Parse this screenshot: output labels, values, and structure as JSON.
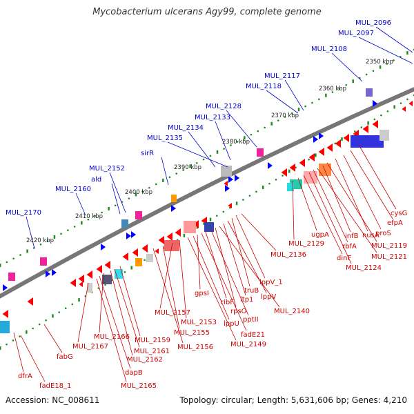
{
  "title": "Mycobacterium ulcerans Agy99, complete genome",
  "footer": {
    "accession": "Accession: NC_008611",
    "summary": "Topology: circular; Length: 5,631,606 bp; Genes: 4,210"
  },
  "colors": {
    "backbone": "#888888",
    "forward_gene": "#0000ff",
    "reverse_gene": "#ff0000",
    "tick": "#228b22",
    "label_forward": "#0000cc",
    "label_reverse": "#cc0000"
  },
  "scale_labels": [
    "2350 kbp",
    "2360 kbp",
    "2370 kbp",
    "2380 kbp",
    "2390 kbp",
    "2400 kbp",
    "2410 kbp",
    "2420 kbp"
  ],
  "forward_genes": [
    "MUL_2096",
    "MUL_2097",
    "MUL_2108",
    "MUL_2117",
    "MUL_2118",
    "MUL_2128",
    "MUL_2133",
    "MUL_2134",
    "MUL_2135",
    "sirR",
    "MUL_2152",
    "ald",
    "MUL_2160",
    "MUL_2170"
  ],
  "reverse_genes": [
    "cysG",
    "efpA",
    "proS",
    "nusA",
    "MUL_2119",
    "infB",
    "MUL_2121",
    "rbfA",
    "MUL_2124",
    "dinF",
    "ugpA",
    "MUL_2129",
    "MUL_2136",
    "lppV_1",
    "truB",
    "lppV",
    "ltp1",
    "MUL_2140",
    "rpsO",
    "pptII",
    "ribF",
    "fadE21",
    "gpsI",
    "lppU",
    "MUL_2149",
    "MUL_2153",
    "MUL_2157",
    "MUL_2155",
    "MUL_2156",
    "MUL_2159",
    "MUL_2161",
    "MUL_2162",
    "MUL_2166",
    "MUL_2167",
    "dapB",
    "MUL_2165",
    "fabG",
    "dfrA",
    "fadE18_1"
  ]
}
